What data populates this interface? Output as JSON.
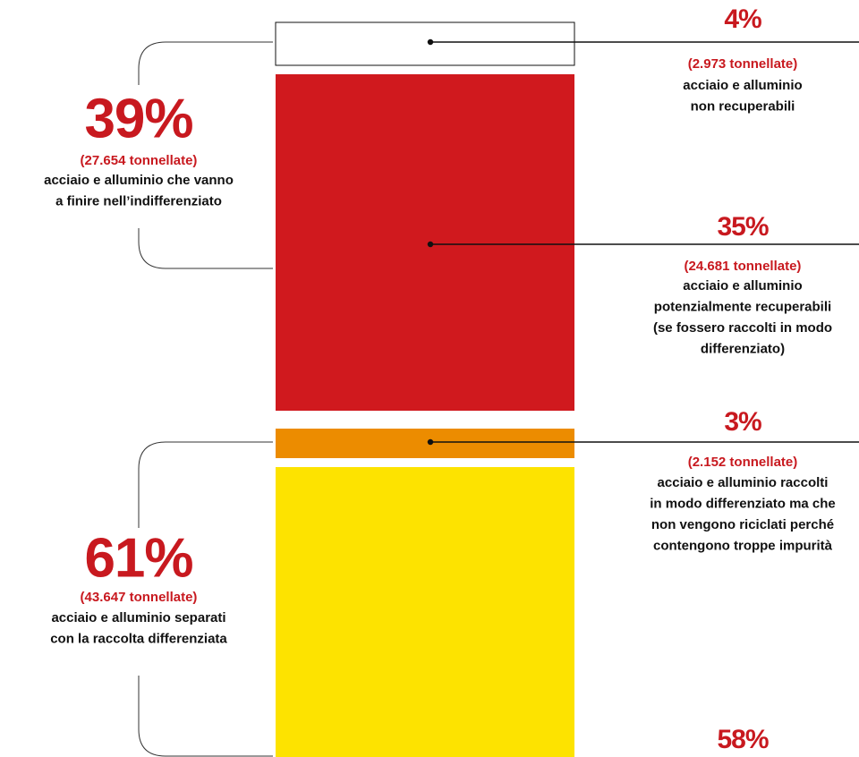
{
  "groups": [
    {
      "percent": "39%",
      "tonnes": "(27.654 tonnellate)",
      "lines": [
        "acciaio e alluminio che vanno",
        "a finire nell’indifferenziato"
      ]
    },
    {
      "percent": "61%",
      "tonnes": "(43.647 tonnellate)",
      "lines": [
        "acciaio e alluminio separati",
        "con la raccolta differenziata"
      ]
    }
  ],
  "segments": [
    {
      "percent": "4%",
      "tonnes": "(2.973 tonnellate)",
      "lines": [
        "acciaio e alluminio",
        "non recuperabili"
      ]
    },
    {
      "percent": "35%",
      "tonnes": "(24.681 tonnellate)",
      "lines": [
        "acciaio e alluminio",
        "potenzialmente recuperabili",
        "(se fossero raccolti in modo",
        "differenziato)"
      ]
    },
    {
      "percent": "3%",
      "tonnes": "(2.152 tonnellate)",
      "lines": [
        "acciaio e alluminio raccolti",
        "in modo differenziato ma che",
        "non vengono riciclati perché",
        "contengono troppe impurità"
      ]
    },
    {
      "percent": "58%"
    }
  ]
}
